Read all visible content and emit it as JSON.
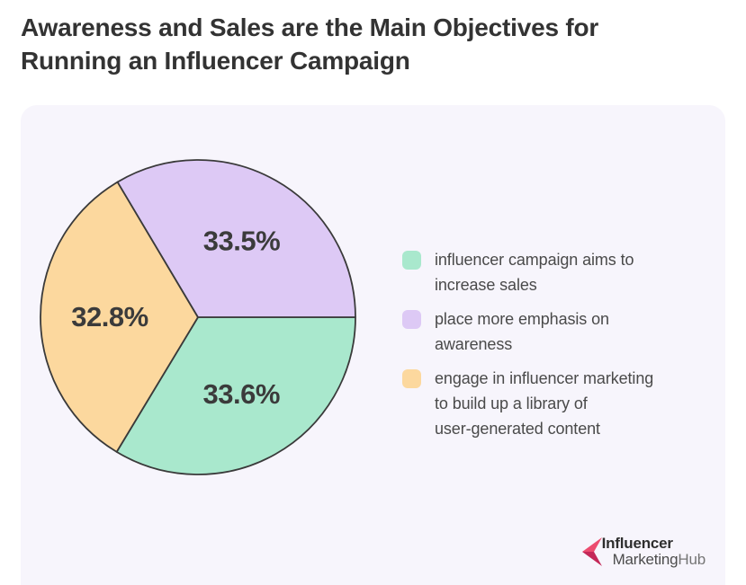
{
  "title": "Awareness and Sales are the Main Objectives for\nRunning an Influencer Campaign",
  "colors": {
    "card_bg": "#f7f5fc",
    "pie_stroke": "#3a3a3a",
    "slice_label": "#3b3b3b",
    "title_text": "#333333",
    "legend_text": "#4a4a4a"
  },
  "chart_data": {
    "type": "pie",
    "title": "Awareness and Sales are the Main Objectives for Running an Influencer Campaign",
    "unit": "%",
    "direction": "clockwise",
    "start_angle_deg": 0,
    "legend_position": "right",
    "slices": [
      {
        "label": "influencer campaign aims to increase sales",
        "value": 33.6,
        "display": "33.6%",
        "color": "#a9e8cd"
      },
      {
        "label": "engage in influencer marketing to build up a library of user-generated content",
        "value": 32.8,
        "display": "32.8%",
        "color": "#fcd89e"
      },
      {
        "label": "place more emphasis on awareness",
        "value": 33.5,
        "display": "33.5%",
        "color": "#ddc9f5"
      }
    ]
  },
  "legend": {
    "items": [
      {
        "swatch_color": "#a9e8cd",
        "text": "influencer campaign aims to\nincrease sales"
      },
      {
        "swatch_color": "#ddc9f5",
        "text": "place more emphasis on\nawareness"
      },
      {
        "swatch_color": "#fcd89e",
        "text": "engage in influencer marketing\nto build up a library of\nuser-generated content"
      }
    ]
  },
  "logo": {
    "line1": "Influencer",
    "line2_marketing": "Marketing",
    "line2_hub": "Hub",
    "colors": {
      "arrow_light": "#ec4c6f",
      "arrow_dark": "#c42858"
    }
  }
}
